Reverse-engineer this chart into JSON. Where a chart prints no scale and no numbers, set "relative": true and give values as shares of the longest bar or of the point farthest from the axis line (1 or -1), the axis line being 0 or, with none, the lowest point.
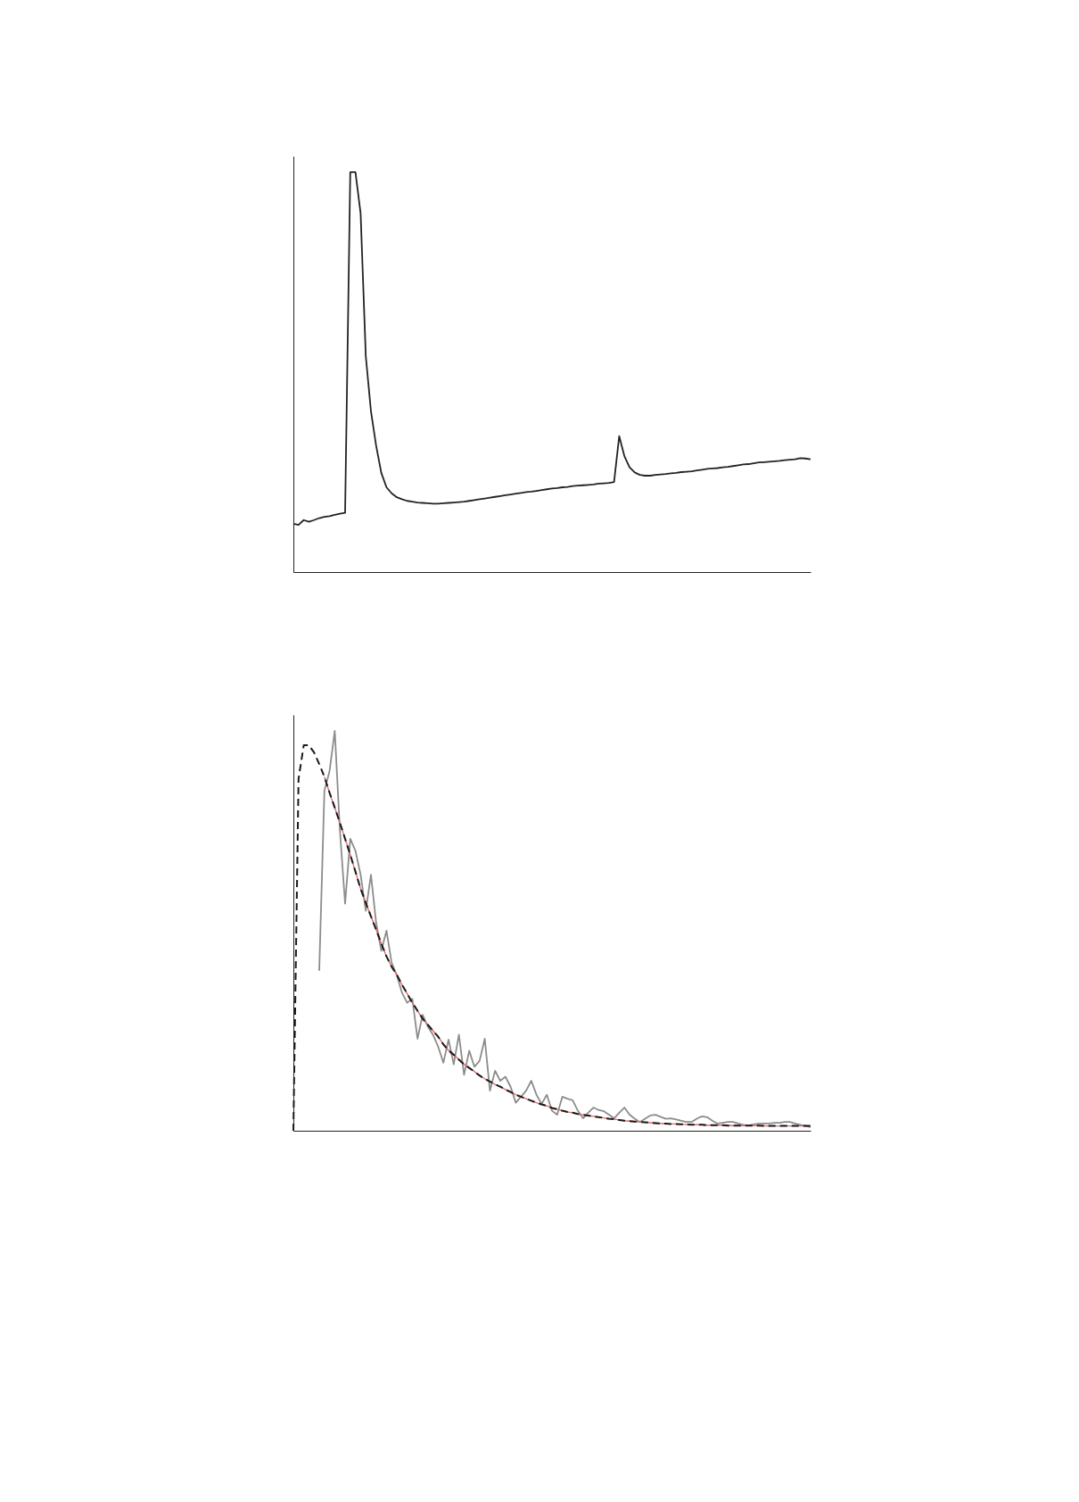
{
  "chart_data": [
    {
      "type": "line",
      "relative": true,
      "categories": [
        null,
        null,
        null,
        null,
        null,
        null,
        null,
        null,
        null,
        null,
        null,
        null,
        null,
        null,
        null,
        null,
        null,
        null,
        null,
        null,
        null,
        null,
        null,
        null,
        null,
        null,
        null,
        null,
        null,
        null,
        null,
        null,
        null,
        null,
        null,
        null,
        null,
        null,
        null,
        null,
        null,
        null,
        null,
        null,
        null,
        null,
        null,
        null,
        null,
        null,
        null,
        null,
        null,
        null,
        null,
        null,
        null,
        null,
        null,
        null,
        null,
        null,
        null,
        null,
        null,
        null,
        null,
        null,
        null,
        null,
        null,
        null,
        null,
        null,
        null,
        null,
        null,
        null,
        null,
        null,
        null,
        null,
        null,
        null,
        null,
        null,
        null,
        null,
        null,
        null,
        null,
        null,
        null,
        null,
        null,
        null,
        null,
        null,
        null,
        null,
        null
      ],
      "series": [
        {
          "color": "#222222",
          "values": [
            0.121,
            0.118,
            0.13,
            0.126,
            0.13,
            0.135,
            0.138,
            0.14,
            0.143,
            0.146,
            0.148,
            1.0,
            1.0,
            0.897,
            0.54,
            0.402,
            0.316,
            0.248,
            0.212,
            0.197,
            0.187,
            0.182,
            0.178,
            0.176,
            0.174,
            0.173,
            0.172,
            0.171,
            0.171,
            0.172,
            0.173,
            0.174,
            0.175,
            0.176,
            0.178,
            0.18,
            0.182,
            0.184,
            0.186,
            0.188,
            0.19,
            0.192,
            0.194,
            0.196,
            0.198,
            0.2,
            0.201,
            0.203,
            0.205,
            0.207,
            0.209,
            0.21,
            0.212,
            0.213,
            0.215,
            0.216,
            0.217,
            0.218,
            0.219,
            0.221,
            0.222,
            0.223,
            0.225,
            0.34,
            0.29,
            0.262,
            0.249,
            0.243,
            0.241,
            0.241,
            0.243,
            0.244,
            0.245,
            0.247,
            0.248,
            0.25,
            0.251,
            0.252,
            0.254,
            0.256,
            0.258,
            0.259,
            0.26,
            0.262,
            0.263,
            0.265,
            0.267,
            0.269,
            0.27,
            0.272,
            0.274,
            0.275,
            0.276,
            0.277,
            0.278,
            0.28,
            0.281,
            0.282,
            0.285,
            0.284,
            0.282
          ]
        }
      ]
    },
    {
      "type": "line",
      "relative": true,
      "categories": [
        null,
        null,
        null,
        null,
        null,
        null,
        null,
        null,
        null,
        null,
        null,
        null,
        null,
        null,
        null,
        null,
        null,
        null,
        null,
        null,
        null,
        null,
        null,
        null,
        null,
        null,
        null,
        null,
        null,
        null,
        null,
        null,
        null,
        null,
        null,
        null,
        null,
        null,
        null,
        null,
        null,
        null,
        null,
        null,
        null,
        null,
        null,
        null,
        null,
        null,
        null,
        null,
        null,
        null,
        null,
        null,
        null,
        null,
        null,
        null,
        null,
        null,
        null,
        null,
        null,
        null,
        null,
        null,
        null,
        null,
        null,
        null,
        null,
        null,
        null,
        null,
        null,
        null,
        null,
        null,
        null,
        null,
        null,
        null,
        null,
        null,
        null,
        null,
        null,
        null,
        null,
        null,
        null,
        null,
        null,
        null,
        null,
        null,
        null,
        null,
        null
      ],
      "series": [
        {
          "color": "#8c8c8c",
          "values": [
            null,
            null,
            null,
            null,
            null,
            0.4,
            0.85,
            0.9,
            1.0,
            0.75,
            0.568,
            0.73,
            0.7,
            0.64,
            0.55,
            0.64,
            0.52,
            0.45,
            0.5,
            0.42,
            0.389,
            0.345,
            0.32,
            0.33,
            0.23,
            0.29,
            0.26,
            0.24,
            0.21,
            0.17,
            0.228,
            0.166,
            0.24,
            0.14,
            0.2,
            0.16,
            0.175,
            0.23,
            0.1,
            0.15,
            0.125,
            0.135,
            0.11,
            0.07,
            0.085,
            0.1,
            0.125,
            0.09,
            0.067,
            0.09,
            0.05,
            0.04,
            0.085,
            0.08,
            0.076,
            0.05,
            0.031,
            0.045,
            0.058,
            0.052,
            0.049,
            0.04,
            0.031,
            0.045,
            0.058,
            0.04,
            0.03,
            0.022,
            0.03,
            0.038,
            0.04,
            0.035,
            0.03,
            0.031,
            0.028,
            0.025,
            0.022,
            0.022,
            0.03,
            0.036,
            0.034,
            0.025,
            0.018,
            0.02,
            0.022,
            0.022,
            0.018,
            0.015,
            0.013,
            0.016,
            0.018,
            0.018,
            0.018,
            0.02,
            0.02,
            0.022,
            0.022,
            0.018,
            0.015,
            0.012,
            0.009
          ]
        },
        {
          "color": "#e06a6a",
          "values": [
            null,
            null,
            null,
            null,
            null,
            null,
            0.885,
            0.845,
            0.808,
            0.77,
            0.73,
            0.69,
            0.648,
            0.605,
            0.57,
            0.536,
            0.503,
            0.468,
            0.436,
            0.41,
            0.39,
            0.365,
            0.343,
            0.32,
            0.3,
            0.28,
            0.265,
            0.25,
            0.235,
            0.216,
            0.201,
            0.19,
            0.178,
            0.166,
            0.157,
            0.148,
            0.138,
            0.13,
            0.123,
            0.116,
            0.11,
            0.103,
            0.097,
            0.09,
            0.085,
            0.08,
            0.075,
            0.07,
            0.066,
            0.062,
            0.057,
            0.054,
            0.05,
            0.047,
            0.045,
            0.042,
            0.04,
            0.038,
            0.036,
            0.034,
            0.032,
            0.03,
            0.029,
            0.027,
            0.025,
            0.024,
            0.023,
            0.022,
            0.021,
            0.02,
            0.019,
            0.018,
            0.018,
            0.017,
            0.017,
            0.016,
            0.016,
            0.015,
            0.015,
            0.015,
            0.014,
            0.014,
            0.014,
            0.014,
            0.013,
            0.013,
            0.013,
            0.013,
            0.013,
            0.013,
            0.013,
            0.012,
            0.012,
            0.012,
            0.012,
            0.012,
            0.012,
            0.012,
            0.012,
            0.012,
            0.012
          ]
        },
        {
          "color": "#1a1a1a",
          "line_style": "dashed",
          "values": [
            0,
            0.88,
            0.964,
            0.964,
            0.946,
            0.917,
            0.885,
            0.845,
            0.808,
            0.77,
            0.73,
            0.69,
            0.648,
            0.605,
            0.57,
            0.536,
            0.503,
            0.468,
            0.436,
            0.41,
            0.39,
            0.365,
            0.343,
            0.32,
            0.3,
            0.28,
            0.265,
            0.25,
            0.235,
            0.216,
            0.201,
            0.19,
            0.178,
            0.166,
            0.157,
            0.148,
            0.138,
            0.13,
            0.123,
            0.116,
            0.11,
            0.103,
            0.097,
            0.09,
            0.085,
            0.08,
            0.075,
            0.07,
            0.066,
            0.062,
            0.057,
            0.054,
            0.05,
            0.047,
            0.045,
            0.042,
            0.04,
            0.038,
            0.036,
            0.034,
            0.032,
            0.03,
            0.029,
            0.027,
            0.025,
            0.024,
            0.023,
            0.022,
            0.021,
            0.02,
            0.019,
            0.018,
            0.018,
            0.017,
            0.017,
            0.016,
            0.016,
            0.015,
            0.015,
            0.015,
            0.014,
            0.014,
            0.014,
            0.014,
            0.013,
            0.013,
            0.013,
            0.013,
            0.013,
            0.013,
            0.013,
            0.012,
            0.012,
            0.012,
            0.012,
            0.012,
            0.012,
            0.012,
            0.012,
            0.012,
            0.012
          ]
        }
      ]
    }
  ]
}
